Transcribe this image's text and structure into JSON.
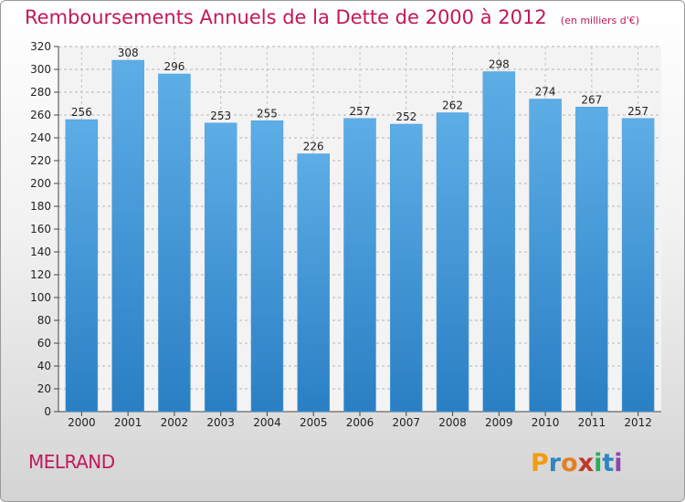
{
  "header": {
    "title": "Remboursements Annuels de la Dette de 2000 à 2012",
    "unit": "(en milliers d'€)"
  },
  "footer": {
    "place": "MELRAND",
    "brand": "Proxiti"
  },
  "colors": {
    "title": "#c2185b",
    "bar_top": "#5dade6",
    "bar_bottom": "#2a7fc4"
  },
  "chart_data": {
    "type": "bar",
    "categories": [
      "2000",
      "2001",
      "2002",
      "2003",
      "2004",
      "2005",
      "2006",
      "2007",
      "2008",
      "2009",
      "2010",
      "2011",
      "2012"
    ],
    "values": [
      256,
      308,
      296,
      253,
      255,
      226,
      257,
      252,
      262,
      298,
      274,
      267,
      257
    ],
    "ylim": [
      0,
      320
    ],
    "yticks": [
      0,
      20,
      40,
      60,
      80,
      100,
      120,
      140,
      160,
      180,
      200,
      220,
      240,
      260,
      280,
      300,
      320
    ],
    "grid": true,
    "data_labels": true
  }
}
